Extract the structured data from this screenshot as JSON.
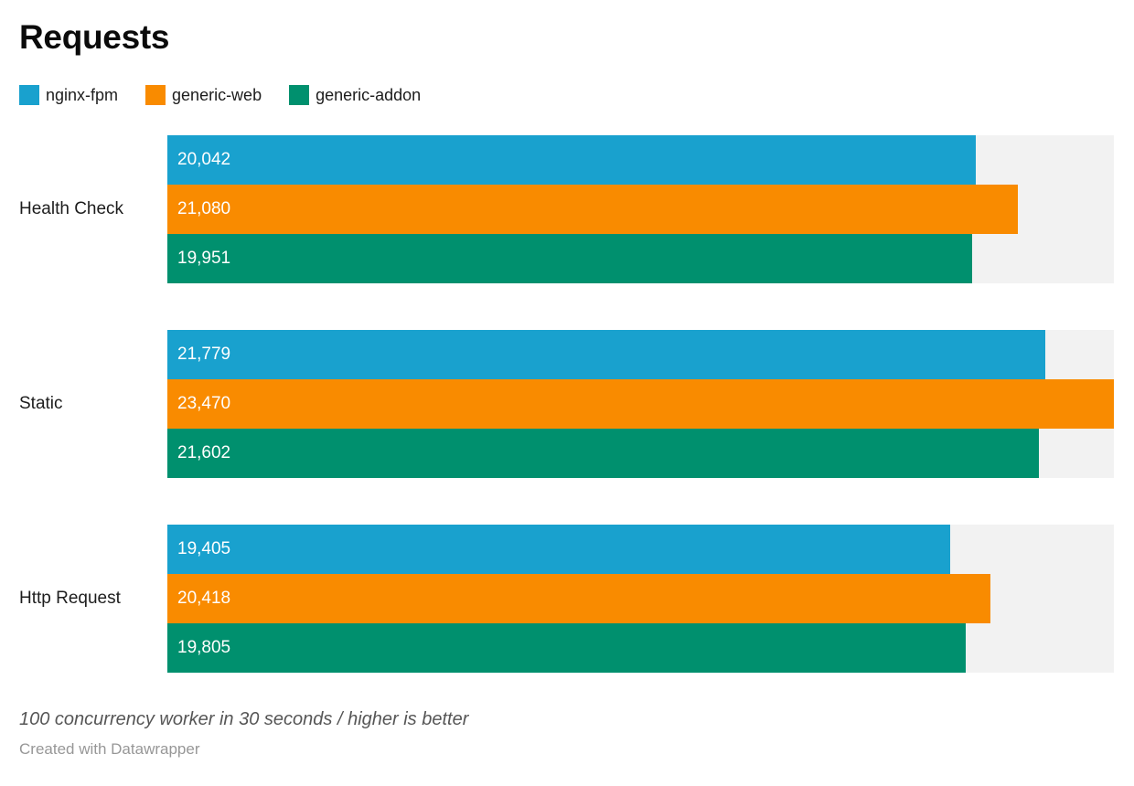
{
  "title": "Requests",
  "legend": {
    "items": [
      {
        "label": "nginx-fpm",
        "color": "#19a1ce"
      },
      {
        "label": "generic-web",
        "color": "#f98b00"
      },
      {
        "label": "generic-addon",
        "color": "#00906e"
      }
    ]
  },
  "chart_data": {
    "type": "bar",
    "orientation": "horizontal",
    "title": "Requests",
    "categories": [
      "Health Check",
      "Static",
      "Http Request"
    ],
    "series": [
      {
        "name": "nginx-fpm",
        "color": "#19a1ce",
        "values": [
          20042,
          21779,
          19405
        ],
        "labels": [
          "20,042",
          "21,779",
          "19,405"
        ]
      },
      {
        "name": "generic-web",
        "color": "#f98b00",
        "values": [
          21080,
          23470,
          20418
        ],
        "labels": [
          "21,080",
          "23,470",
          "20,418"
        ]
      },
      {
        "name": "generic-addon",
        "color": "#00906e",
        "values": [
          19951,
          21602,
          19805
        ],
        "labels": [
          "19,951",
          "21,602",
          "19,805"
        ]
      }
    ],
    "xlim": [
      0,
      23470
    ],
    "grid": false,
    "legend_position": "top",
    "track_color": "#f2f2f2",
    "value_labels_inside_bars": true
  },
  "footer": {
    "note": "100 concurrency worker in 30 seconds / higher is better",
    "attribution": "Created with Datawrapper"
  }
}
